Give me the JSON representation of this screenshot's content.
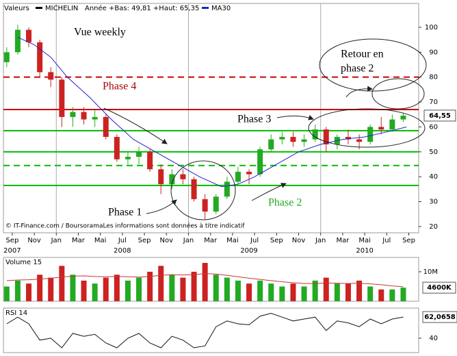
{
  "chart_data": [
    {
      "type": "candlestick",
      "header": "Valeurs",
      "name": "MICHELIN",
      "subtitle": "Année +Bas: 49,81 +Haut: 65,35",
      "x": [
        -0.5,
        0.5,
        1.5,
        2.5,
        3.5,
        4.5,
        5.5,
        6.5,
        7.5,
        8.5,
        9.5,
        10.5,
        11.5,
        12.5,
        13.5,
        14.5,
        15.5,
        16.5,
        17.5,
        18.5,
        19.5,
        20.5,
        21.5,
        22.5,
        23.5,
        24.5,
        25.5,
        26.5,
        27.5,
        28.5,
        29.5,
        30.5,
        31.5,
        32.5,
        33.5,
        34.5,
        35.5
      ],
      "open": [
        86,
        90,
        99,
        94,
        82,
        79,
        64,
        66,
        63,
        64,
        56,
        47,
        48,
        50,
        43,
        37,
        41,
        39,
        31,
        26,
        32,
        38,
        42,
        41,
        51,
        55,
        56,
        54,
        55,
        59,
        53,
        56,
        55,
        54,
        60,
        59,
        63
      ],
      "high": [
        92,
        101,
        100,
        95,
        84,
        80,
        68,
        68,
        67,
        65,
        57,
        50,
        52,
        51,
        45,
        43,
        43,
        40,
        33,
        33,
        40,
        44,
        43,
        52,
        57,
        58,
        58,
        57,
        61,
        60,
        57,
        59,
        57,
        61,
        64,
        65,
        65.35
      ],
      "low": [
        84,
        89,
        92,
        80,
        76,
        60,
        60,
        61,
        60,
        55,
        46,
        45,
        45,
        42,
        33,
        35,
        37,
        30,
        23,
        25,
        31,
        37,
        37,
        40,
        50,
        53,
        52,
        52,
        54,
        50,
        51,
        53,
        51,
        53,
        57,
        58,
        62
      ],
      "close": [
        90,
        99,
        94,
        82,
        79,
        64,
        66,
        63,
        64,
        56,
        47,
        48,
        50,
        43,
        37,
        41,
        39,
        31,
        26,
        32,
        38,
        42,
        41,
        51,
        55,
        56,
        54,
        55,
        59,
        53,
        56,
        55,
        54,
        60,
        59,
        63,
        64.55
      ],
      "up_color": "#22aa22",
      "down_color": "#cc2222",
      "ma": {
        "name": "MA30",
        "color": "#2222cc",
        "x": [
          0.5,
          2,
          3.5,
          5,
          7,
          9,
          11,
          13,
          15,
          17,
          19,
          20.5,
          22,
          24,
          26,
          28,
          30,
          32,
          34,
          35.8
        ],
        "values": [
          96,
          93,
          88,
          80,
          72,
          63,
          55,
          50,
          45,
          40,
          36,
          37,
          40,
          45,
          50,
          53,
          55,
          56,
          58,
          60
        ]
      },
      "last": {
        "value": 64.55,
        "label": "64,55"
      },
      "levels": [
        {
          "value": 80,
          "color": "#cc0000",
          "dashed": true
        },
        {
          "value": 67,
          "color": "#cc0000",
          "dashed": false
        },
        {
          "value": 58.5,
          "color": "#00bb00",
          "dashed": false
        },
        {
          "value": 50,
          "color": "#00bb00",
          "dashed": false
        },
        {
          "value": 44.5,
          "color": "#00bb00",
          "dashed": true
        },
        {
          "value": 36.5,
          "color": "#00bb00",
          "dashed": false
        }
      ],
      "ylim": [
        17.5,
        109.6
      ],
      "yticks": [
        20,
        30,
        40,
        50,
        60,
        70,
        80,
        90,
        100
      ],
      "xlim": [
        -0.8,
        36.9
      ],
      "xticks": [
        {
          "value": 0,
          "label": "Sep"
        },
        {
          "value": 2,
          "label": "Nov"
        },
        {
          "value": 4,
          "label": "Jan"
        },
        {
          "value": 6,
          "label": "Mar"
        },
        {
          "value": 8,
          "label": "Mai"
        },
        {
          "value": 10,
          "label": "Jul"
        },
        {
          "value": 12,
          "label": "Sep"
        },
        {
          "value": 14,
          "label": "Nov"
        },
        {
          "value": 16,
          "label": "Jan"
        },
        {
          "value": 18,
          "label": "Mar"
        },
        {
          "value": 20,
          "label": "Mai"
        },
        {
          "value": 22,
          "label": "Jul"
        },
        {
          "value": 24,
          "label": "Sep"
        },
        {
          "value": 26,
          "label": "Nov"
        },
        {
          "value": 28,
          "label": "Jan"
        },
        {
          "value": 30,
          "label": "Mar"
        },
        {
          "value": 32,
          "label": "Mai"
        },
        {
          "value": 34,
          "label": "Jul"
        },
        {
          "value": 36,
          "label": "Sep"
        }
      ],
      "year_labels": [
        {
          "value": 0,
          "label": "2007"
        },
        {
          "value": 10,
          "label": "2008"
        },
        {
          "value": 21.5,
          "label": "2009"
        },
        {
          "value": 32,
          "label": "2010"
        }
      ],
      "year_lines": [
        4,
        16,
        28
      ],
      "annotations": [
        "Vue weekly",
        "Phase 4",
        "Phase 3",
        "Phase 2",
        "Phase 1",
        "Retour en",
        "phase 2"
      ],
      "footer": "© IT-Finance.com / BoursoramaLes informations sont données à titre indicatif"
    },
    {
      "type": "bar",
      "title": "Volume 15",
      "values": [
        5000000,
        7000000,
        6000000,
        9000000,
        8000000,
        12000000,
        9000000,
        7000000,
        6000000,
        8000000,
        9000000,
        7000000,
        8000000,
        10000000,
        12000000,
        9000000,
        8000000,
        10000000,
        13000000,
        9000000,
        8000000,
        7000000,
        6000000,
        7000000,
        6000000,
        5000000,
        6000000,
        5000000,
        7000000,
        8000000,
        6000000,
        6000000,
        7000000,
        5000000,
        4000000,
        4000000,
        4600000
      ],
      "ma_values": [
        7000000,
        7200000,
        7300000,
        7500000,
        7800000,
        8200000,
        8500000,
        8600000,
        8400000,
        8300000,
        8400000,
        8300000,
        8200000,
        8400000,
        8800000,
        9000000,
        8900000,
        9000000,
        9400000,
        9200000,
        8800000,
        8300000,
        7800000,
        7400000,
        7000000,
        6600000,
        6300000,
        6000000,
        6000000,
        6200000,
        6100000,
        6000000,
        6100000,
        5900000,
        5600000,
        5200000,
        4900000
      ],
      "ma_color": "#cc3333",
      "ylim": [
        0,
        14400000
      ],
      "yticks": [
        {
          "value": 10000000,
          "label": "10M"
        }
      ],
      "last": {
        "value": 4600000,
        "label": "4600K"
      }
    },
    {
      "type": "line",
      "title": "RSI 14",
      "color": "#111111",
      "values": [
        55,
        62,
        55,
        38,
        40,
        30,
        45,
        42,
        44,
        35,
        30,
        40,
        45,
        35,
        30,
        42,
        38,
        30,
        32,
        52,
        58,
        55,
        54,
        63,
        66,
        62,
        58,
        60,
        62,
        48,
        58,
        56,
        52,
        60,
        55,
        60,
        62.0658
      ],
      "ylim": [
        25,
        70
      ],
      "yticks": [
        40
      ],
      "last": {
        "value": 62.0658,
        "label": "62,0658"
      }
    }
  ]
}
